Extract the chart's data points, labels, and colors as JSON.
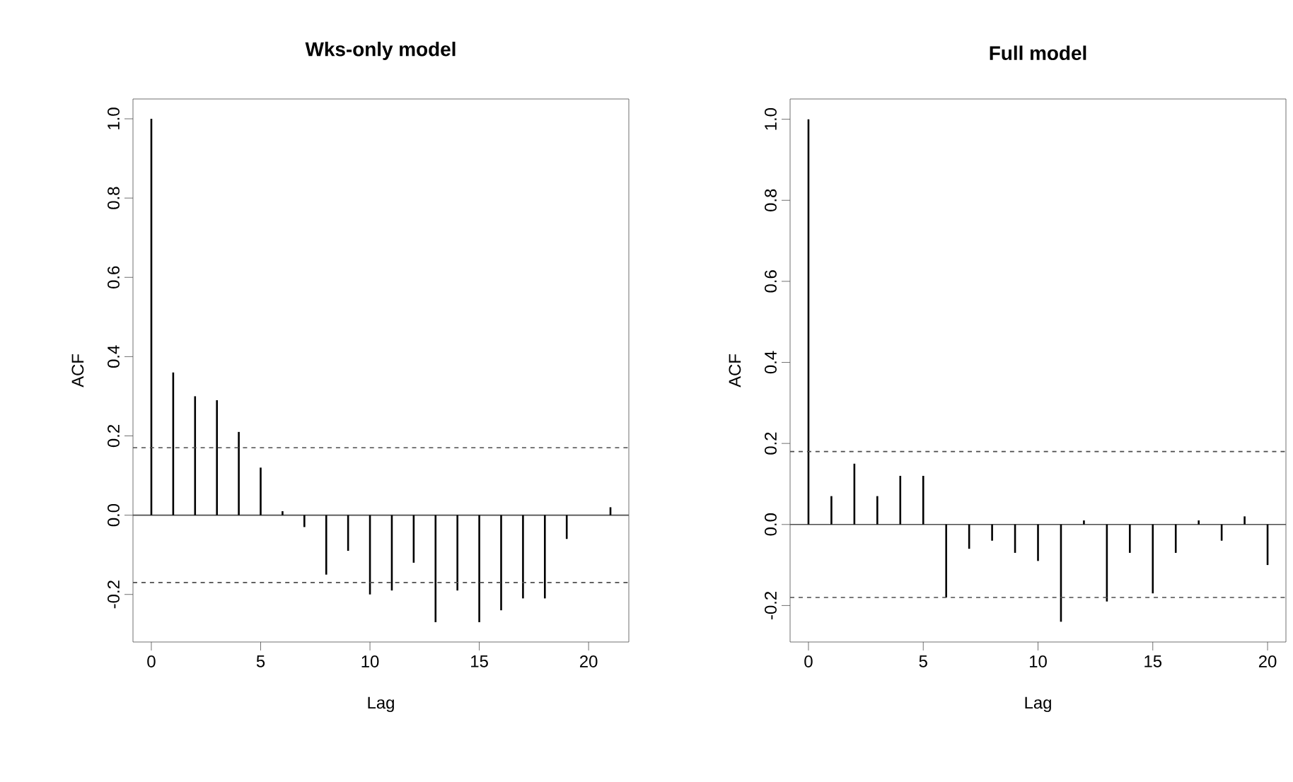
{
  "chart_data": [
    {
      "type": "bar",
      "title": "Wks-only model",
      "xlabel": "Lag",
      "ylabel": "ACF",
      "x": [
        0,
        1,
        2,
        3,
        4,
        5,
        6,
        7,
        8,
        9,
        10,
        11,
        12,
        13,
        14,
        15,
        16,
        17,
        18,
        19,
        20,
        21
      ],
      "values": [
        1.0,
        0.36,
        0.3,
        0.29,
        0.21,
        0.12,
        0.01,
        -0.03,
        -0.15,
        -0.09,
        -0.2,
        -0.19,
        -0.12,
        -0.27,
        -0.19,
        -0.27,
        -0.24,
        -0.21,
        -0.21,
        -0.06,
        0.0,
        0.02
      ],
      "color": "#000000",
      "xlim": [
        -0.84,
        21.84
      ],
      "ylim": [
        -0.32,
        1.05
      ],
      "xticks": [
        0,
        5,
        10,
        15,
        20
      ],
      "yticks": [
        {
          "value": -0.2,
          "label": "-0.2"
        },
        {
          "value": 0,
          "label": "0.0"
        },
        {
          "value": 0.2,
          "label": "0.2"
        },
        {
          "value": 0.4,
          "label": "0.4"
        },
        {
          "value": 0.6,
          "label": "0.6"
        },
        {
          "value": 0.8,
          "label": "0.8"
        },
        {
          "value": 1,
          "label": "1.0"
        }
      ],
      "ref_lines": [
        {
          "axis": "y",
          "value": 0.17,
          "color": "#4d4d4d",
          "line_style": "dashed"
        },
        {
          "axis": "y",
          "value": -0.17,
          "color": "#4d4d4d",
          "line_style": "dashed"
        }
      ]
    },
    {
      "type": "bar",
      "title": "Full model",
      "xlabel": "Lag",
      "ylabel": "ACF",
      "x": [
        0,
        1,
        2,
        3,
        4,
        5,
        6,
        7,
        8,
        9,
        10,
        11,
        12,
        13,
        14,
        15,
        16,
        17,
        18,
        19,
        20
      ],
      "values": [
        1.0,
        0.07,
        0.15,
        0.07,
        0.12,
        0.12,
        -0.18,
        -0.06,
        -0.04,
        -0.07,
        -0.09,
        -0.24,
        0.01,
        -0.19,
        -0.07,
        -0.17,
        -0.07,
        0.01,
        -0.04,
        0.02,
        -0.1
      ],
      "color": "#000000",
      "xlim": [
        -0.8,
        20.8
      ],
      "ylim": [
        -0.29,
        1.05
      ],
      "xticks": [
        0,
        5,
        10,
        15,
        20
      ],
      "yticks": [
        {
          "value": -0.2,
          "label": "-0.2"
        },
        {
          "value": 0,
          "label": "0.0"
        },
        {
          "value": 0.2,
          "label": "0.2"
        },
        {
          "value": 0.4,
          "label": "0.4"
        },
        {
          "value": 0.6,
          "label": "0.6"
        },
        {
          "value": 0.8,
          "label": "0.8"
        },
        {
          "value": 1,
          "label": "1.0"
        }
      ],
      "ref_lines": [
        {
          "axis": "y",
          "value": 0.18,
          "color": "#4d4d4d",
          "line_style": "dashed"
        },
        {
          "axis": "y",
          "value": -0.18,
          "color": "#4d4d4d",
          "line_style": "dashed"
        }
      ]
    }
  ]
}
